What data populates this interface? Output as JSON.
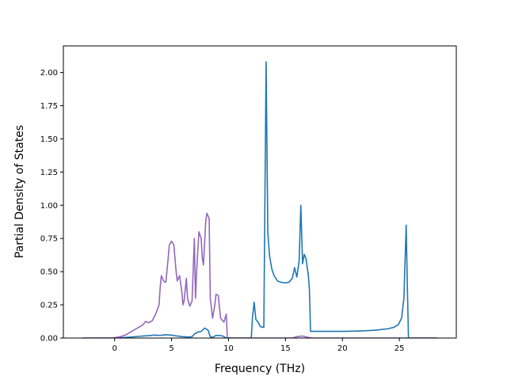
{
  "chart_data": {
    "type": "line",
    "xlabel": "Frequency (THz)",
    "ylabel": "Partial Density of States",
    "xlim": [
      -4.5,
      30.0
    ],
    "ylim": [
      0.0,
      2.2
    ],
    "xticks": [
      0,
      5,
      10,
      15,
      20,
      25
    ],
    "yticks": [
      0.0,
      0.25,
      0.5,
      0.75,
      1.0,
      1.25,
      1.5,
      1.75,
      2.0
    ],
    "xtick_labels": [
      "0",
      "5",
      "10",
      "15",
      "20",
      "25"
    ],
    "ytick_labels": [
      "0.00",
      "0.25",
      "0.50",
      "0.75",
      "1.00",
      "1.25",
      "1.50",
      "1.75",
      "2.00"
    ],
    "grid": false,
    "series": [
      {
        "color": "#1f77b4",
        "points": [
          [
            -2.8,
            0.0
          ],
          [
            0.0,
            0.0
          ],
          [
            0.5,
            0.002
          ],
          [
            1.0,
            0.005
          ],
          [
            1.5,
            0.008
          ],
          [
            2.0,
            0.012
          ],
          [
            2.5,
            0.015
          ],
          [
            3.0,
            0.018
          ],
          [
            3.5,
            0.022
          ],
          [
            4.0,
            0.02
          ],
          [
            4.5,
            0.025
          ],
          [
            5.0,
            0.022
          ],
          [
            5.5,
            0.015
          ],
          [
            6.0,
            0.01
          ],
          [
            6.5,
            0.008
          ],
          [
            6.8,
            0.01
          ],
          [
            7.0,
            0.03
          ],
          [
            7.3,
            0.045
          ],
          [
            7.6,
            0.05
          ],
          [
            7.9,
            0.075
          ],
          [
            8.2,
            0.06
          ],
          [
            8.4,
            0.01
          ],
          [
            8.6,
            0.005
          ],
          [
            8.9,
            0.02
          ],
          [
            9.2,
            0.02
          ],
          [
            9.5,
            0.015
          ],
          [
            9.8,
            0.0
          ],
          [
            12.0,
            0.0
          ],
          [
            12.1,
            0.15
          ],
          [
            12.25,
            0.27
          ],
          [
            12.4,
            0.14
          ],
          [
            12.6,
            0.12
          ],
          [
            12.8,
            0.085
          ],
          [
            13.1,
            0.08
          ],
          [
            13.3,
            2.08
          ],
          [
            13.45,
            0.8
          ],
          [
            13.6,
            0.62
          ],
          [
            13.8,
            0.52
          ],
          [
            14.0,
            0.47
          ],
          [
            14.3,
            0.43
          ],
          [
            14.6,
            0.42
          ],
          [
            15.0,
            0.415
          ],
          [
            15.3,
            0.42
          ],
          [
            15.6,
            0.45
          ],
          [
            15.8,
            0.53
          ],
          [
            16.0,
            0.46
          ],
          [
            16.2,
            0.58
          ],
          [
            16.35,
            1.0
          ],
          [
            16.5,
            0.56
          ],
          [
            16.65,
            0.63
          ],
          [
            16.8,
            0.6
          ],
          [
            17.0,
            0.48
          ],
          [
            17.1,
            0.37
          ],
          [
            17.2,
            0.05
          ],
          [
            18.0,
            0.05
          ],
          [
            19.0,
            0.05
          ],
          [
            20.0,
            0.05
          ],
          [
            21.0,
            0.052
          ],
          [
            22.0,
            0.055
          ],
          [
            23.0,
            0.06
          ],
          [
            24.0,
            0.07
          ],
          [
            24.5,
            0.08
          ],
          [
            24.9,
            0.1
          ],
          [
            25.2,
            0.15
          ],
          [
            25.4,
            0.3
          ],
          [
            25.6,
            0.85
          ],
          [
            25.7,
            0.4
          ],
          [
            25.8,
            0.0
          ],
          [
            28.3,
            0.0
          ]
        ]
      },
      {
        "color": "#9467bd",
        "points": [
          [
            -2.8,
            0.0
          ],
          [
            -0.3,
            0.0
          ],
          [
            0.0,
            0.003
          ],
          [
            0.5,
            0.01
          ],
          [
            1.0,
            0.025
          ],
          [
            1.5,
            0.05
          ],
          [
            2.0,
            0.075
          ],
          [
            2.5,
            0.1
          ],
          [
            2.7,
            0.125
          ],
          [
            3.0,
            0.115
          ],
          [
            3.3,
            0.13
          ],
          [
            3.6,
            0.18
          ],
          [
            3.9,
            0.25
          ],
          [
            4.0,
            0.38
          ],
          [
            4.1,
            0.47
          ],
          [
            4.3,
            0.43
          ],
          [
            4.5,
            0.42
          ],
          [
            4.7,
            0.6
          ],
          [
            4.8,
            0.7
          ],
          [
            5.0,
            0.73
          ],
          [
            5.2,
            0.7
          ],
          [
            5.4,
            0.5
          ],
          [
            5.5,
            0.43
          ],
          [
            5.7,
            0.47
          ],
          [
            5.9,
            0.35
          ],
          [
            6.0,
            0.25
          ],
          [
            6.1,
            0.28
          ],
          [
            6.3,
            0.45
          ],
          [
            6.4,
            0.3
          ],
          [
            6.6,
            0.24
          ],
          [
            6.8,
            0.28
          ],
          [
            7.0,
            0.75
          ],
          [
            7.1,
            0.3
          ],
          [
            7.2,
            0.5
          ],
          [
            7.4,
            0.8
          ],
          [
            7.6,
            0.75
          ],
          [
            7.7,
            0.6
          ],
          [
            7.8,
            0.55
          ],
          [
            8.0,
            0.88
          ],
          [
            8.1,
            0.94
          ],
          [
            8.2,
            0.92
          ],
          [
            8.3,
            0.9
          ],
          [
            8.4,
            0.3
          ],
          [
            8.6,
            0.15
          ],
          [
            8.8,
            0.25
          ],
          [
            8.9,
            0.33
          ],
          [
            9.1,
            0.32
          ],
          [
            9.3,
            0.15
          ],
          [
            9.6,
            0.12
          ],
          [
            9.8,
            0.18
          ],
          [
            9.9,
            0.0
          ],
          [
            15.6,
            0.0
          ],
          [
            16.0,
            0.01
          ],
          [
            16.5,
            0.015
          ],
          [
            17.0,
            0.005
          ],
          [
            17.3,
            0.0
          ],
          [
            28.3,
            0.0
          ]
        ]
      }
    ]
  }
}
